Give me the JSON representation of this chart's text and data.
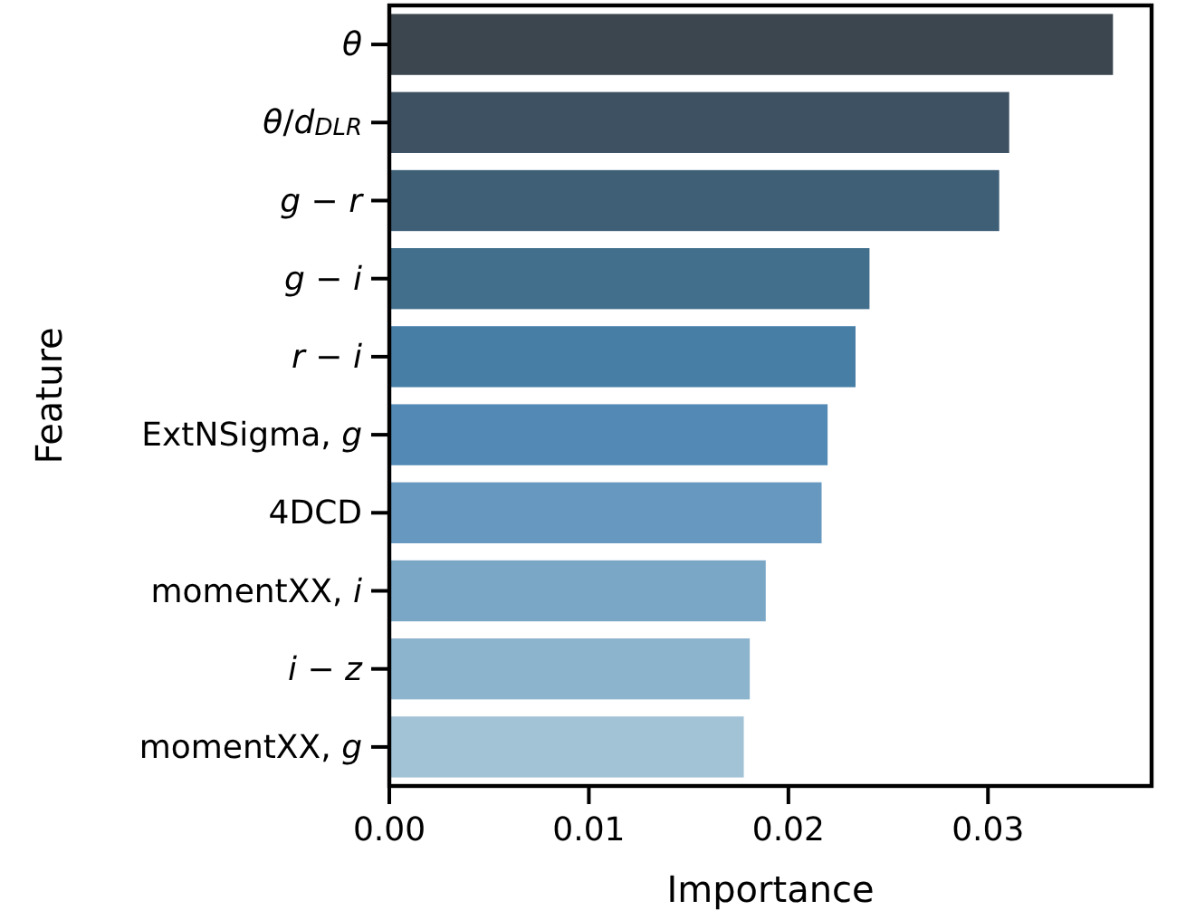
{
  "chart_data": {
    "type": "bar",
    "orientation": "horizontal",
    "xlabel": "Importance",
    "ylabel": "Feature",
    "categories": [
      "θ",
      "θ/d$_{DLR}$",
      "g − r",
      "g − i",
      "r − i",
      "ExtNSigma, g",
      "4DCD",
      "momentXX, i",
      "i − z",
      "momentXX, g"
    ],
    "values": [
      0.0363,
      0.0311,
      0.0306,
      0.0241,
      0.0234,
      0.022,
      0.0217,
      0.0189,
      0.0181,
      0.0178
    ],
    "colors": [
      "#3b464e",
      "#3d5163",
      "#3f5f77",
      "#42708c",
      "#467ea6",
      "#528ab5",
      "#6799c0",
      "#7aa7c6",
      "#8db4cd",
      "#a2c2d6"
    ],
    "xlim": [
      0,
      0.0382
    ],
    "xticks": [
      {
        "value": 0,
        "label": "0.00"
      },
      {
        "value": 0.01,
        "label": "0.01"
      },
      {
        "value": 0.02,
        "label": "0.02"
      },
      {
        "value": 0.03,
        "label": "0.03"
      }
    ],
    "grid": false
  }
}
